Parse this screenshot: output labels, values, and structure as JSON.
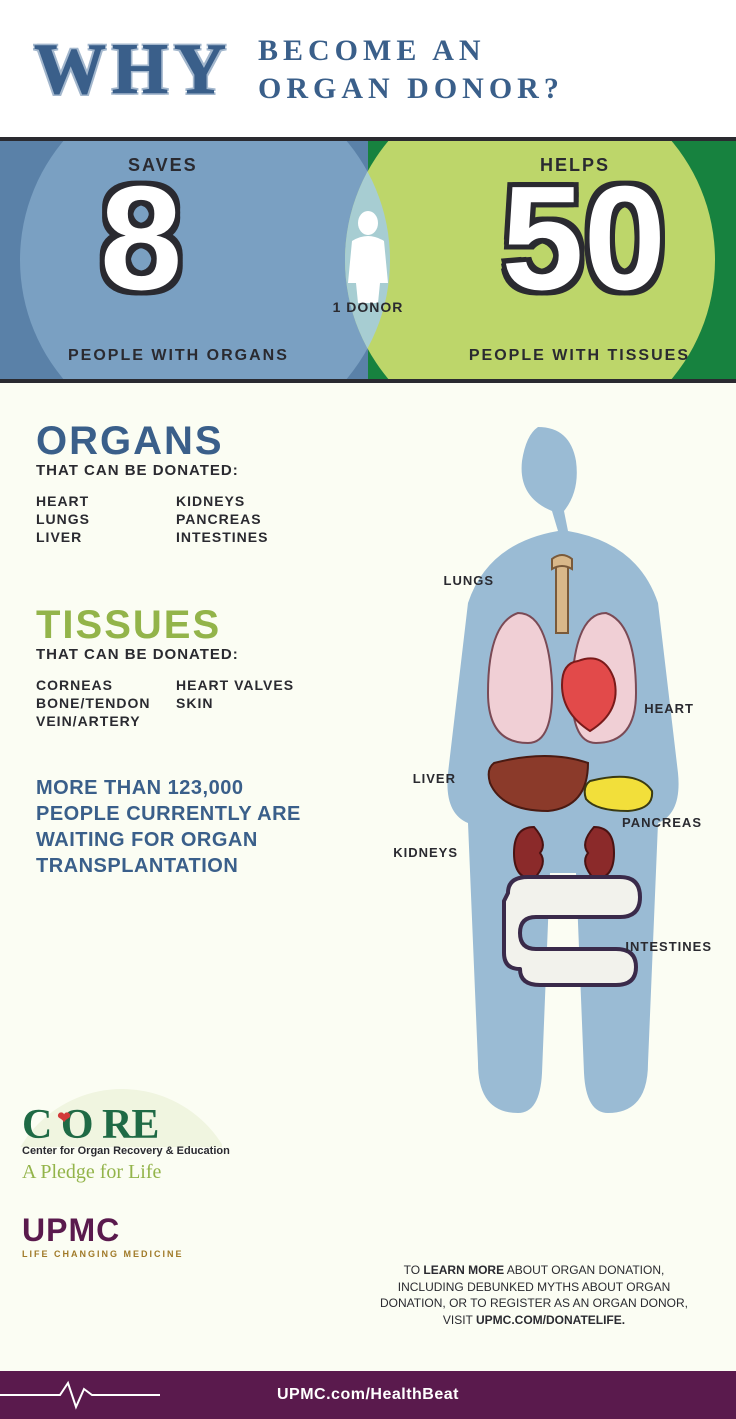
{
  "header": {
    "why": "WHY",
    "subtitle": "BECOME  AN\nORGAN  DONOR?"
  },
  "venn": {
    "colors": {
      "band_left": "#5a81a8",
      "band_right": "#17823f",
      "circle_left": "#7aa0c2",
      "circle_right": "#bdd66a",
      "overlap": "#a7cdd2",
      "border": "#2a2a30"
    },
    "saves_label": "SAVES",
    "helps_label": "HELPS",
    "donor_label": "1 DONOR",
    "people_organs": "PEOPLE WITH ORGANS",
    "people_tissues": "PEOPLE WITH TISSUES",
    "num_saves": "8",
    "num_helps": "50"
  },
  "body": {
    "organs_heading": "ORGANS",
    "organs_sub": "THAT CAN BE DONATED:",
    "organs_list": [
      "HEART",
      "KIDNEYS",
      "LUNGS",
      "PANCREAS",
      "LIVER",
      "INTESTINES"
    ],
    "tissues_heading": "TISSUES",
    "tissues_sub": "THAT CAN BE DONATED:",
    "tissues_list": [
      "CORNEAS",
      "HEART VALVES",
      "BONE/TENDON",
      "SKIN",
      "VEIN/ARTERY",
      ""
    ],
    "callout": "MORE THAN 123,000\nPEOPLE CURRENTLY ARE\nWAITING FOR ORGAN\nTRANSPLANTATION",
    "anatomy_labels": {
      "lungs": "LUNGS",
      "heart": "HEART",
      "liver": "LIVER",
      "pancreas": "PANCREAS",
      "kidneys": "KIDNEYS",
      "intestines": "INTESTINES"
    },
    "anatomy_colors": {
      "silhouette": "#9abbd4",
      "lungs_fill": "#f0cfd5",
      "lungs_stroke": "#7a4a55",
      "trachea": "#d9b88a",
      "heart_fill": "#e24a4a",
      "heart_stroke": "#7a1a1a",
      "liver_fill": "#8b3a2a",
      "liver_stroke": "#4a1a12",
      "pancreas_fill": "#f2df3a",
      "pancreas_stroke": "#3a3a12",
      "kidney_fill": "#8b2a2a",
      "kidney_stroke": "#4a1212",
      "intestine_fill": "#f2f2ec",
      "intestine_stroke": "#3a2a4a"
    },
    "logos": {
      "core_name": "CORE",
      "core_line1": "Center for Organ Recovery & Education",
      "core_line2": "A Pledge for Life",
      "upmc_name": "UPMC",
      "upmc_line": "LIFE CHANGING MEDICINE"
    },
    "learn_more_html": "TO <b>LEARN MORE</b> ABOUT ORGAN DONATION,\nINCLUDING DEBUNKED MYTHS ABOUT ORGAN\nDONATION, OR TO REGISTER AS AN ORGAN DONOR,\nVISIT <b>UPMC.COM/DONATELIFE.</b>",
    "background": "#fbfdf3"
  },
  "footer": {
    "url": "UPMC.com/HealthBeat",
    "bg": "#5a1a4d"
  }
}
